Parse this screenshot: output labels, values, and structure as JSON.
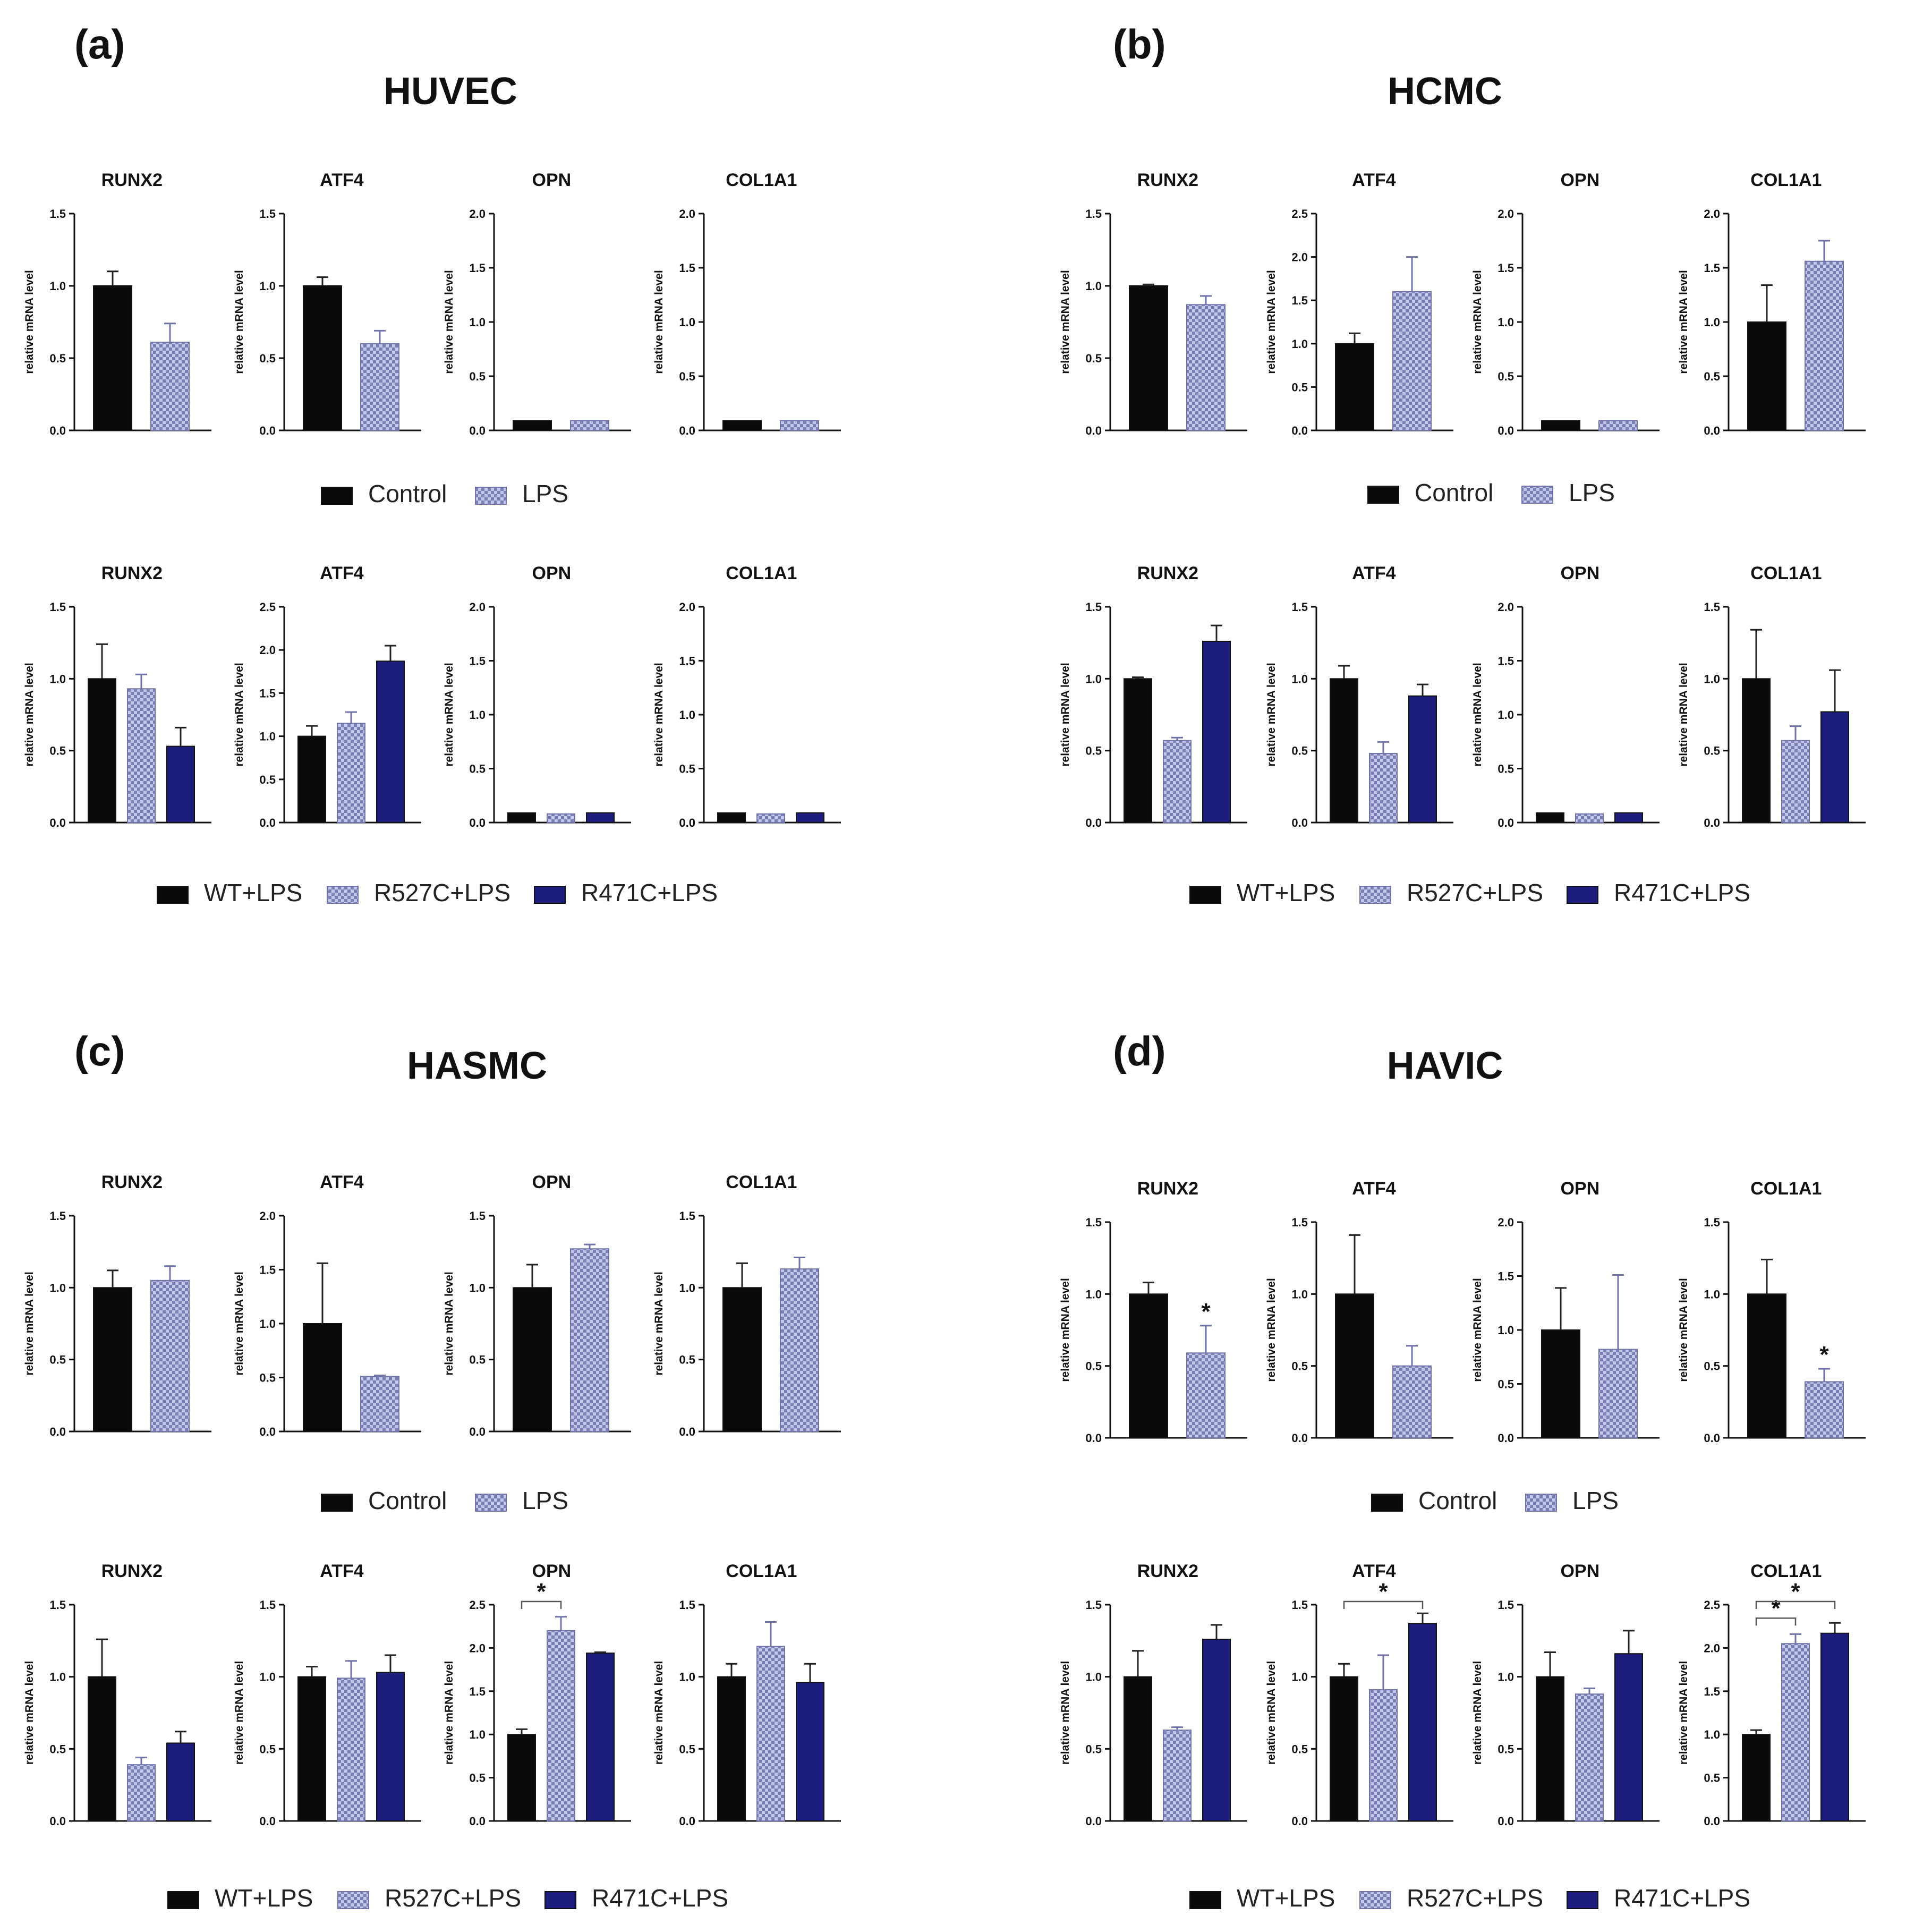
{
  "figure": {
    "ylabel": "relative mRNA level",
    "colors": {
      "black": "#0a0a0a",
      "lps": "#b8bde4",
      "r527c": "#b8bde4",
      "r471c": "#1c1c7c",
      "pattern_stroke": "#6f73a8"
    },
    "legend_two": [
      "Control",
      "LPS"
    ],
    "legend_three": [
      "WT+LPS",
      "R527C+LPS",
      "R471C+LPS"
    ],
    "panels": [
      {
        "label": "(a)",
        "title": "HUVEC"
      },
      {
        "label": "(b)",
        "title": "HCMC"
      },
      {
        "label": "(c)",
        "title": "HASMC"
      },
      {
        "label": "(d)",
        "title": "HAVIC"
      }
    ]
  },
  "chart_data": [
    {
      "id": "a1-RUNX2",
      "panel": "(a)",
      "type": "bar",
      "title": "RUNX2",
      "categories": [
        "Control",
        "LPS"
      ],
      "values": [
        1.0,
        0.61
      ],
      "errors": [
        0.1,
        0.13
      ],
      "ylim": [
        0,
        1.5
      ],
      "yticks": [
        "0.0",
        "0.5",
        "1.0",
        "1.5"
      ],
      "ylabel": "relative mRNA level",
      "significance": []
    },
    {
      "id": "a1-ATF4",
      "panel": "(a)",
      "type": "bar",
      "title": "ATF4",
      "categories": [
        "Control",
        "LPS"
      ],
      "values": [
        1.0,
        0.6
      ],
      "errors": [
        0.06,
        0.09
      ],
      "ylim": [
        0,
        1.5
      ],
      "yticks": [
        "0.0",
        "0.5",
        "1.0",
        "1.5"
      ],
      "ylabel": "relative mRNA level",
      "significance": []
    },
    {
      "id": "a1-OPN",
      "panel": "(a)",
      "type": "bar",
      "title": "OPN",
      "categories": [
        "Control",
        "LPS"
      ],
      "values": [
        0.09,
        0.09
      ],
      "errors": [
        0,
        0
      ],
      "ylim": [
        0,
        2
      ],
      "yticks": [
        "0.0",
        "0.5",
        "1.0",
        "1.5",
        "2.0"
      ],
      "ylabel": "relative mRNA level",
      "significance": []
    },
    {
      "id": "a1-COL1A1",
      "panel": "(a)",
      "type": "bar",
      "title": "COL1A1",
      "categories": [
        "Control",
        "LPS"
      ],
      "values": [
        0.09,
        0.09
      ],
      "errors": [
        0,
        0
      ],
      "ylim": [
        0,
        2
      ],
      "yticks": [
        "0.0",
        "0.5",
        "1.0",
        "1.5",
        "2.0"
      ],
      "ylabel": "relative mRNA level",
      "significance": []
    },
    {
      "id": "a2-RUNX2",
      "panel": "(a)",
      "type": "bar",
      "title": "RUNX2",
      "categories": [
        "WT+LPS",
        "R527C+LPS",
        "R471C+LPS"
      ],
      "values": [
        1.0,
        0.93,
        0.53
      ],
      "errors": [
        0.24,
        0.1,
        0.13
      ],
      "ylim": [
        0,
        1.5
      ],
      "yticks": [
        "0.0",
        "0.5",
        "1.0",
        "1.5"
      ],
      "ylabel": "relative mRNA level",
      "significance": []
    },
    {
      "id": "a2-ATF4",
      "panel": "(a)",
      "type": "bar",
      "title": "ATF4",
      "categories": [
        "WT+LPS",
        "R527C+LPS",
        "R471C+LPS"
      ],
      "values": [
        1.0,
        1.15,
        1.87
      ],
      "errors": [
        0.12,
        0.13,
        0.18
      ],
      "ylim": [
        0,
        2.5
      ],
      "yticks": [
        "0.0",
        "0.5",
        "1.0",
        "1.5",
        "2.0",
        "2.5"
      ],
      "ylabel": "relative mRNA level",
      "significance": []
    },
    {
      "id": "a2-OPN",
      "panel": "(a)",
      "type": "bar",
      "title": "OPN",
      "categories": [
        "WT+LPS",
        "R527C+LPS",
        "R471C+LPS"
      ],
      "values": [
        0.09,
        0.08,
        0.09
      ],
      "errors": [
        0,
        0,
        0
      ],
      "ylim": [
        0,
        2
      ],
      "yticks": [
        "0.0",
        "0.5",
        "1.0",
        "1.5",
        "2.0"
      ],
      "ylabel": "relative mRNA level",
      "significance": []
    },
    {
      "id": "a2-COL1A1",
      "panel": "(a)",
      "type": "bar",
      "title": "COL1A1",
      "categories": [
        "WT+LPS",
        "R527C+LPS",
        "R471C+LPS"
      ],
      "values": [
        0.09,
        0.08,
        0.09
      ],
      "errors": [
        0,
        0,
        0
      ],
      "ylim": [
        0,
        2
      ],
      "yticks": [
        "0.0",
        "0.5",
        "1.0",
        "1.5",
        "2.0"
      ],
      "ylabel": "relative mRNA level",
      "significance": []
    },
    {
      "id": "b1-RUNX2",
      "panel": "(b)",
      "type": "bar",
      "title": "RUNX2",
      "categories": [
        "Control",
        "LPS"
      ],
      "values": [
        1.0,
        0.87
      ],
      "errors": [
        0.01,
        0.06
      ],
      "ylim": [
        0,
        1.5
      ],
      "yticks": [
        "0.0",
        "0.5",
        "1.0",
        "1.5"
      ],
      "ylabel": "relative mRNA level",
      "significance": []
    },
    {
      "id": "b1-ATF4",
      "panel": "(b)",
      "type": "bar",
      "title": "ATF4",
      "categories": [
        "Control",
        "LPS"
      ],
      "values": [
        1.0,
        1.6
      ],
      "errors": [
        0.12,
        0.4
      ],
      "ylim": [
        0,
        2.5
      ],
      "yticks": [
        "0.0",
        "0.5",
        "1.0",
        "1.5",
        "2.0",
        "2.5"
      ],
      "ylabel": "relative mRNA level",
      "significance": []
    },
    {
      "id": "b1-OPN",
      "panel": "(b)",
      "type": "bar",
      "title": "OPN",
      "categories": [
        "Control",
        "LPS"
      ],
      "values": [
        0.09,
        0.09
      ],
      "errors": [
        0,
        0
      ],
      "ylim": [
        0,
        2
      ],
      "yticks": [
        "0.0",
        "0.5",
        "1.0",
        "1.5",
        "2.0"
      ],
      "ylabel": "relative mRNA level",
      "significance": []
    },
    {
      "id": "b1-COL1A1",
      "panel": "(b)",
      "type": "bar",
      "title": "COL1A1",
      "categories": [
        "Control",
        "LPS"
      ],
      "values": [
        1.0,
        1.56
      ],
      "errors": [
        0.34,
        0.19
      ],
      "ylim": [
        0,
        2
      ],
      "yticks": [
        "0.0",
        "0.5",
        "1.0",
        "1.5",
        "2.0"
      ],
      "ylabel": "relative mRNA level",
      "significance": []
    },
    {
      "id": "b2-RUNX2",
      "panel": "(b)",
      "type": "bar",
      "title": "RUNX2",
      "categories": [
        "WT+LPS",
        "R527C+LPS",
        "R471C+LPS"
      ],
      "values": [
        1.0,
        0.57,
        1.26
      ],
      "errors": [
        0.01,
        0.02,
        0.11
      ],
      "ylim": [
        0,
        1.5
      ],
      "yticks": [
        "0.0",
        "0.5",
        "1.0",
        "1.5"
      ],
      "ylabel": "relative mRNA level",
      "significance": []
    },
    {
      "id": "b2-ATF4",
      "panel": "(b)",
      "type": "bar",
      "title": "ATF4",
      "categories": [
        "WT+LPS",
        "R527C+LPS",
        "R471C+LPS"
      ],
      "values": [
        1.0,
        0.48,
        0.88
      ],
      "errors": [
        0.09,
        0.08,
        0.08
      ],
      "ylim": [
        0,
        1.5
      ],
      "yticks": [
        "0.0",
        "0.5",
        "1.0",
        "1.5"
      ],
      "ylabel": "relative mRNA level",
      "significance": []
    },
    {
      "id": "b2-OPN",
      "panel": "(b)",
      "type": "bar",
      "title": "OPN",
      "categories": [
        "WT+LPS",
        "R527C+LPS",
        "R471C+LPS"
      ],
      "values": [
        0.09,
        0.08,
        0.09
      ],
      "errors": [
        0,
        0,
        0
      ],
      "ylim": [
        0,
        2
      ],
      "yticks": [
        "0.0",
        "0.5",
        "1.0",
        "1.5",
        "2.0"
      ],
      "ylabel": "relative mRNA level",
      "significance": []
    },
    {
      "id": "b2-COL1A1",
      "panel": "(b)",
      "type": "bar",
      "title": "COL1A1",
      "categories": [
        "WT+LPS",
        "R527C+LPS",
        "R471C+LPS"
      ],
      "values": [
        1.0,
        0.57,
        0.77
      ],
      "errors": [
        0.34,
        0.1,
        0.29
      ],
      "ylim": [
        0,
        1.5
      ],
      "yticks": [
        "0.0",
        "0.5",
        "1.0",
        "1.5"
      ],
      "ylabel": "relative mRNA level",
      "significance": []
    },
    {
      "id": "c1-RUNX2",
      "panel": "(c)",
      "type": "bar",
      "title": "RUNX2",
      "categories": [
        "Control",
        "LPS"
      ],
      "values": [
        1.0,
        1.05
      ],
      "errors": [
        0.12,
        0.1
      ],
      "ylim": [
        0,
        1.5
      ],
      "yticks": [
        "0.0",
        "0.5",
        "1.0",
        "1.5"
      ],
      "ylabel": "relative mRNA level",
      "significance": []
    },
    {
      "id": "c1-ATF4",
      "panel": "(c)",
      "type": "bar",
      "title": "ATF4",
      "categories": [
        "Control",
        "LPS"
      ],
      "values": [
        1.0,
        0.51
      ],
      "errors": [
        0.56,
        0.01
      ],
      "ylim": [
        0,
        2
      ],
      "yticks": [
        "0.0",
        "0.5",
        "1.0",
        "1.5",
        "2.0"
      ],
      "ylabel": "relative mRNA level",
      "significance": []
    },
    {
      "id": "c1-OPN",
      "panel": "(c)",
      "type": "bar",
      "title": "OPN",
      "categories": [
        "Control",
        "LPS"
      ],
      "values": [
        1.0,
        1.27
      ],
      "errors": [
        0.16,
        0.03
      ],
      "ylim": [
        0,
        1.5
      ],
      "yticks": [
        "0.0",
        "0.5",
        "1.0",
        "1.5"
      ],
      "ylabel": "relative mRNA level",
      "significance": []
    },
    {
      "id": "c1-COL1A1",
      "panel": "(c)",
      "type": "bar",
      "title": "COL1A1",
      "categories": [
        "Control",
        "LPS"
      ],
      "values": [
        1.0,
        1.13
      ],
      "errors": [
        0.17,
        0.08
      ],
      "ylim": [
        0,
        1.5
      ],
      "yticks": [
        "0.0",
        "0.5",
        "1.0",
        "1.5"
      ],
      "ylabel": "relative mRNA level",
      "significance": []
    },
    {
      "id": "c2-RUNX2",
      "panel": "(c)",
      "type": "bar",
      "title": "RUNX2",
      "categories": [
        "WT+LPS",
        "R527C+LPS",
        "R471C+LPS"
      ],
      "values": [
        1.0,
        0.39,
        0.54
      ],
      "errors": [
        0.26,
        0.05,
        0.08
      ],
      "ylim": [
        0,
        1.5
      ],
      "yticks": [
        "0.0",
        "0.5",
        "1.0",
        "1.5"
      ],
      "ylabel": "relative mRNA level",
      "significance": []
    },
    {
      "id": "c2-ATF4",
      "panel": "(c)",
      "type": "bar",
      "title": "ATF4",
      "categories": [
        "WT+LPS",
        "R527C+LPS",
        "R471C+LPS"
      ],
      "values": [
        1.0,
        0.99,
        1.03
      ],
      "errors": [
        0.07,
        0.12,
        0.12
      ],
      "ylim": [
        0,
        1.5
      ],
      "yticks": [
        "0.0",
        "0.5",
        "1.0",
        "1.5"
      ],
      "ylabel": "relative mRNA level",
      "significance": []
    },
    {
      "id": "c2-OPN",
      "panel": "(c)",
      "type": "bar",
      "title": "OPN",
      "categories": [
        "WT+LPS",
        "R527C+LPS",
        "R471C+LPS"
      ],
      "values": [
        1.0,
        2.2,
        1.94
      ],
      "errors": [
        0.06,
        0.16,
        0.01
      ],
      "ylim": [
        0,
        2.5
      ],
      "yticks": [
        "0.0",
        "0.5",
        "1.0",
        "1.5",
        "2.0",
        "2.5"
      ],
      "ylabel": "relative mRNA level",
      "significance": [
        {
          "from": 0,
          "to": 1,
          "label": "*"
        }
      ]
    },
    {
      "id": "c2-COL1A1",
      "panel": "(c)",
      "type": "bar",
      "title": "COL1A1",
      "categories": [
        "WT+LPS",
        "R527C+LPS",
        "R471C+LPS"
      ],
      "values": [
        1.0,
        1.21,
        0.96
      ],
      "errors": [
        0.09,
        0.17,
        0.13
      ],
      "ylim": [
        0,
        1.5
      ],
      "yticks": [
        "0.0",
        "0.5",
        "1.0",
        "1.5"
      ],
      "ylabel": "relative mRNA level",
      "significance": []
    },
    {
      "id": "d1-RUNX2",
      "panel": "(d)",
      "type": "bar",
      "title": "RUNX2",
      "categories": [
        "Control",
        "LPS"
      ],
      "values": [
        1.0,
        0.59
      ],
      "errors": [
        0.08,
        0.19
      ],
      "ylim": [
        0,
        1.5
      ],
      "yticks": [
        "0.0",
        "0.5",
        "1.0",
        "1.5"
      ],
      "ylabel": "relative mRNA level",
      "significance": [
        {
          "bar": 1,
          "label": "*"
        }
      ]
    },
    {
      "id": "d1-ATF4",
      "panel": "(d)",
      "type": "bar",
      "title": "ATF4",
      "categories": [
        "Control",
        "LPS"
      ],
      "values": [
        1.0,
        0.5
      ],
      "errors": [
        0.41,
        0.14
      ],
      "ylim": [
        0,
        1.5
      ],
      "yticks": [
        "0.0",
        "0.5",
        "1.0",
        "1.5"
      ],
      "ylabel": "relative mRNA level",
      "significance": []
    },
    {
      "id": "d1-OPN",
      "panel": "(d)",
      "type": "bar",
      "title": "OPN",
      "categories": [
        "Control",
        "LPS"
      ],
      "values": [
        1.0,
        0.82
      ],
      "errors": [
        0.39,
        0.69
      ],
      "ylim": [
        0,
        2
      ],
      "yticks": [
        "0.0",
        "0.5",
        "1.0",
        "1.5",
        "2.0"
      ],
      "ylabel": "relative mRNA level",
      "significance": []
    },
    {
      "id": "d1-COL1A1",
      "panel": "(d)",
      "type": "bar",
      "title": "COL1A1",
      "categories": [
        "Control",
        "LPS"
      ],
      "values": [
        1.0,
        0.39
      ],
      "errors": [
        0.24,
        0.09
      ],
      "ylim": [
        0,
        1.5
      ],
      "yticks": [
        "0.0",
        "0.5",
        "1.0",
        "1.5"
      ],
      "ylabel": "relative mRNA level",
      "significance": [
        {
          "bar": 1,
          "label": "*"
        }
      ]
    },
    {
      "id": "d2-RUNX2",
      "panel": "(d)",
      "type": "bar",
      "title": "RUNX2",
      "categories": [
        "WT+LPS",
        "R527C+LPS",
        "R471C+LPS"
      ],
      "values": [
        1.0,
        0.63,
        1.26
      ],
      "errors": [
        0.18,
        0.02,
        0.1
      ],
      "ylim": [
        0,
        1.5
      ],
      "yticks": [
        "0.0",
        "0.5",
        "1.0",
        "1.5"
      ],
      "ylabel": "relative mRNA level",
      "significance": []
    },
    {
      "id": "d2-ATF4",
      "panel": "(d)",
      "type": "bar",
      "title": "ATF4",
      "categories": [
        "WT+LPS",
        "R527C+LPS",
        "R471C+LPS"
      ],
      "values": [
        1.0,
        0.91,
        1.37
      ],
      "errors": [
        0.09,
        0.24,
        0.07
      ],
      "ylim": [
        0,
        1.5
      ],
      "yticks": [
        "0.0",
        "0.5",
        "1.0",
        "1.5"
      ],
      "ylabel": "relative mRNA level",
      "significance": [
        {
          "from": 0,
          "to": 2,
          "label": "*"
        }
      ]
    },
    {
      "id": "d2-OPN",
      "panel": "(d)",
      "type": "bar",
      "title": "OPN",
      "categories": [
        "WT+LPS",
        "R527C+LPS",
        "R471C+LPS"
      ],
      "values": [
        1.0,
        0.88,
        1.16
      ],
      "errors": [
        0.17,
        0.04,
        0.16
      ],
      "ylim": [
        0,
        1.5
      ],
      "yticks": [
        "0.0",
        "0.5",
        "1.0",
        "1.5"
      ],
      "ylabel": "relative mRNA level",
      "significance": []
    },
    {
      "id": "d2-COL1A1",
      "panel": "(d)",
      "type": "bar",
      "title": "COL1A1",
      "categories": [
        "WT+LPS",
        "R527C+LPS",
        "R471C+LPS"
      ],
      "values": [
        1.0,
        2.05,
        2.17
      ],
      "errors": [
        0.05,
        0.11,
        0.12
      ],
      "ylim": [
        0,
        2.5
      ],
      "yticks": [
        "0.0",
        "0.5",
        "1.0",
        "1.5",
        "2.0",
        "2.5"
      ],
      "ylabel": "relative mRNA level",
      "significance": [
        {
          "from": 0,
          "to": 1,
          "label": "*"
        },
        {
          "from": 0,
          "to": 2,
          "label": "*"
        }
      ]
    }
  ]
}
